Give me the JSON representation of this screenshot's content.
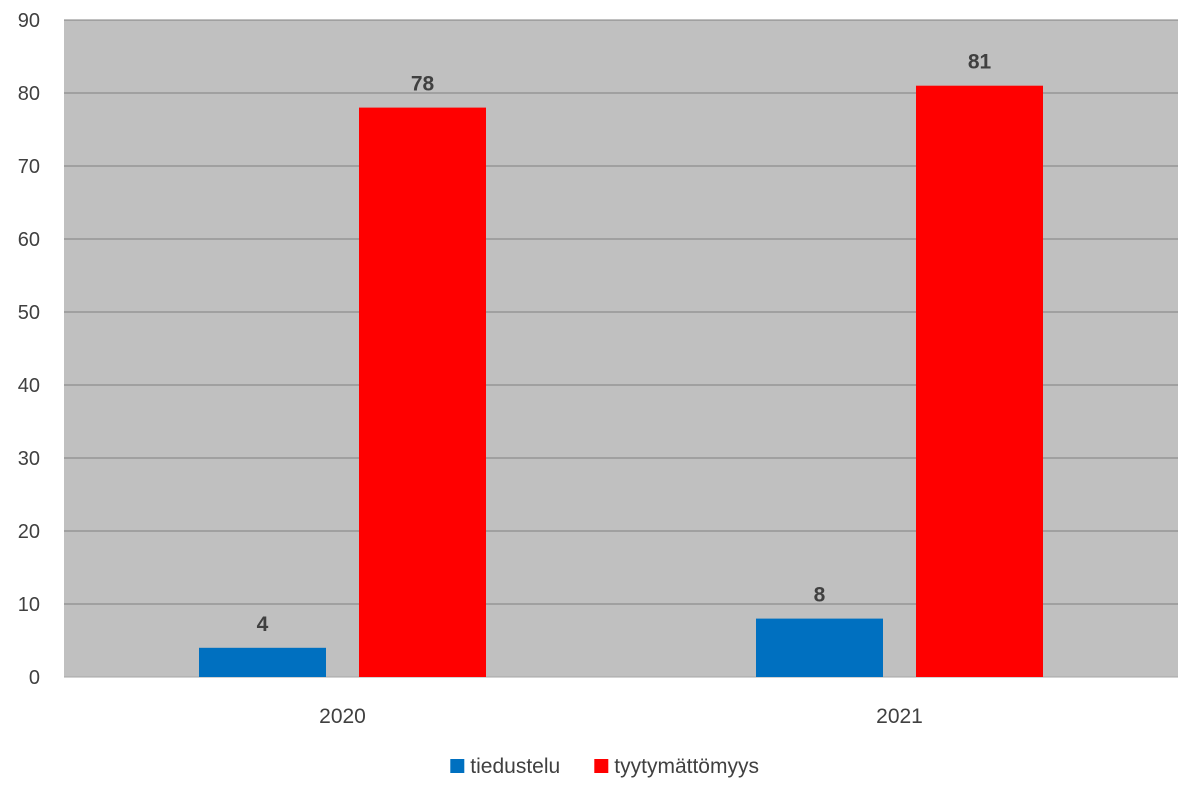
{
  "chart_data": {
    "type": "bar",
    "categories": [
      "2020",
      "2021"
    ],
    "series": [
      {
        "name": "tiedustelu",
        "values": [
          4,
          8
        ],
        "color": "#0070C0"
      },
      {
        "name": "tyytymättömyys",
        "values": [
          78,
          81
        ],
        "color": "#FF0000"
      }
    ],
    "title": "",
    "xlabel": "",
    "ylabel": "",
    "ylim": [
      0,
      90
    ],
    "yticks": [
      0,
      10,
      20,
      30,
      40,
      50,
      60,
      70,
      80,
      90
    ],
    "grid": true,
    "legend_position": "bottom",
    "plot_background": "#C0C0C0",
    "gridline_color": "#808080"
  }
}
